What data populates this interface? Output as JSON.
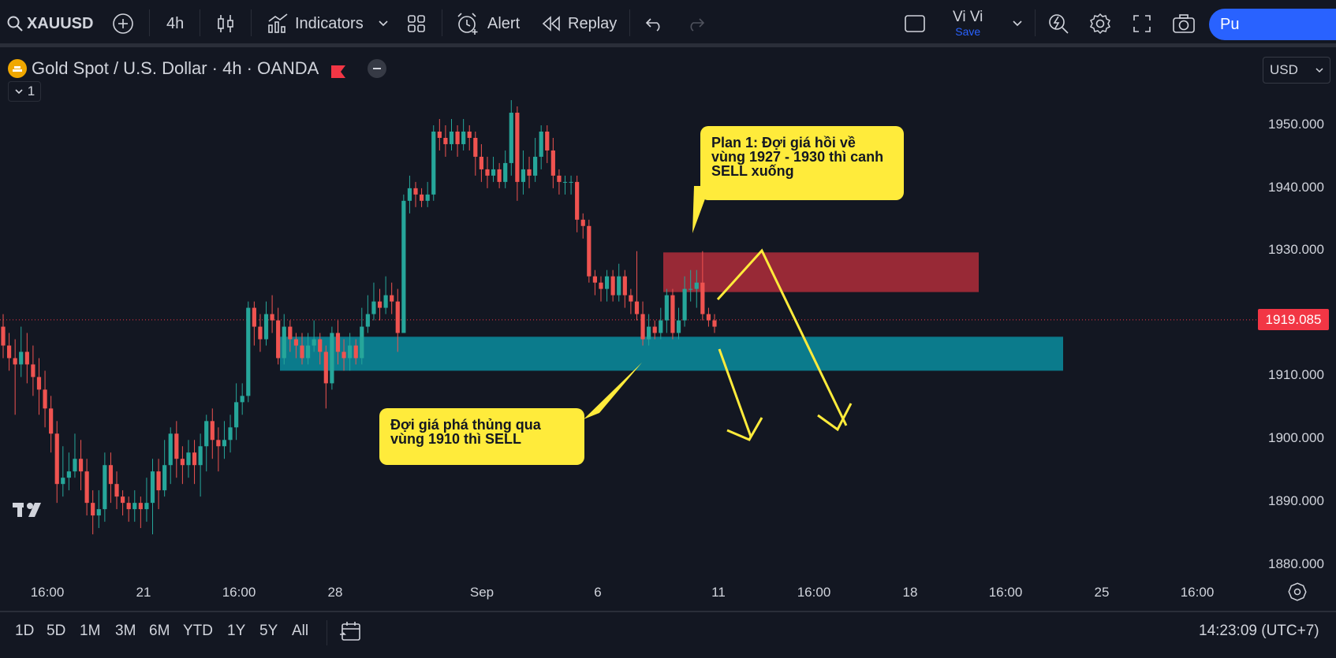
{
  "toolbar": {
    "symbol": "XAUUSD",
    "interval": "4h",
    "indicators_label": "Indicators",
    "alert_label": "Alert",
    "replay_label": "Replay",
    "layout_name": "Vi Vi",
    "save_label": "Save",
    "publish_label": "Pu"
  },
  "legend": {
    "title": "Gold Spot / U.S. Dollar · 4h · OANDA",
    "pane_count": "1"
  },
  "currency": "USD",
  "price_axis": {
    "ticks": [
      "1950.000",
      "1940.000",
      "1930.000",
      "1920.000",
      "1910.000",
      "1900.000",
      "1890.000",
      "1880.000"
    ],
    "current_price": "1919.085"
  },
  "time_axis": {
    "ticks": [
      "16:00",
      "21",
      "16:00",
      "28",
      "Sep",
      "6",
      "11",
      "16:00",
      "18",
      "16:00",
      "25",
      "16:00"
    ]
  },
  "range_buttons": [
    "1D",
    "5D",
    "1M",
    "3M",
    "6M",
    "YTD",
    "1Y",
    "5Y",
    "All"
  ],
  "clock": "14:23:09 (UTC+7)",
  "annotations": {
    "plan1": "Plan 1: Đợi giá hồi về vùng 1927 - 1930 thì canh SELL xuống",
    "plan2": "Đợi giá phá thủng qua vùng 1910 thì SELL"
  },
  "zones": {
    "sell_zone": [
      1923.5,
      1929.8
    ],
    "break_zone": [
      1911.0,
      1916.4
    ]
  },
  "colors": {
    "background": "#131722",
    "up": "#26a69a",
    "down": "#ef5350",
    "sell_zone": "#982936",
    "break_zone": "#0b7b8c",
    "callout": "#ffeb3b",
    "price_label": "#f23645",
    "accent": "#2962ff"
  },
  "chart_data": {
    "type": "candlestick",
    "ylim": [
      1876.5,
      1954.5
    ],
    "current_price": 1919.085,
    "candles": [
      [
        1918,
        1915,
        1920,
        1913
      ],
      [
        1915,
        1913,
        1917,
        1911
      ],
      [
        1913,
        1912,
        1916,
        1904
      ],
      [
        1912,
        1914,
        1918,
        1910
      ],
      [
        1914,
        1912,
        1917,
        1909
      ],
      [
        1912,
        1910,
        1915,
        1907
      ],
      [
        1910,
        1908,
        1913,
        1904
      ],
      [
        1908,
        1905,
        1911,
        1902
      ],
      [
        1905,
        1901,
        1907,
        1898
      ],
      [
        1901,
        1893,
        1903,
        1890
      ],
      [
        1893,
        1894,
        1899,
        1891
      ],
      [
        1894,
        1895,
        1898,
        1892
      ],
      [
        1895,
        1897,
        1901,
        1894
      ],
      [
        1897,
        1895,
        1900,
        1892
      ],
      [
        1895,
        1890,
        1897,
        1888
      ],
      [
        1890,
        1888,
        1892,
        1885
      ],
      [
        1888,
        1889,
        1892,
        1886
      ],
      [
        1889,
        1896,
        1898,
        1887
      ],
      [
        1896,
        1893,
        1898,
        1890
      ],
      [
        1893,
        1891,
        1895,
        1889
      ],
      [
        1891,
        1890,
        1892,
        1888
      ],
      [
        1890,
        1889,
        1891,
        1887
      ],
      [
        1889,
        1890,
        1892,
        1887
      ],
      [
        1890,
        1889,
        1891,
        1886
      ],
      [
        1889,
        1890,
        1894,
        1887
      ],
      [
        1890,
        1895,
        1897,
        1885
      ],
      [
        1895,
        1892,
        1897,
        1889
      ],
      [
        1892,
        1896,
        1900,
        1891
      ],
      [
        1896,
        1901,
        1902,
        1893
      ],
      [
        1901,
        1897,
        1903,
        1894
      ],
      [
        1897,
        1896,
        1899,
        1893
      ],
      [
        1896,
        1898,
        1900,
        1894
      ],
      [
        1898,
        1896,
        1900,
        1893
      ],
      [
        1896,
        1899,
        1901,
        1891
      ],
      [
        1899,
        1903,
        1904,
        1895
      ],
      [
        1903,
        1900,
        1905,
        1897
      ],
      [
        1900,
        1899,
        1902,
        1895
      ],
      [
        1899,
        1900,
        1903,
        1897
      ],
      [
        1900,
        1902,
        1904,
        1898
      ],
      [
        1902,
        1906,
        1909,
        1900
      ],
      [
        1906,
        1907,
        1909,
        1904
      ],
      [
        1907,
        1921,
        1922,
        1906
      ],
      [
        1921,
        1918,
        1922,
        1915
      ],
      [
        1918,
        1916,
        1920,
        1914
      ],
      [
        1916,
        1920,
        1922,
        1915
      ],
      [
        1920,
        1919,
        1923,
        1917
      ],
      [
        1919,
        1913,
        1921,
        1912
      ],
      [
        1913,
        1918,
        1920,
        1912
      ],
      [
        1918,
        1916,
        1919,
        1914
      ],
      [
        1916,
        1915,
        1917,
        1913
      ],
      [
        1915,
        1913,
        1917,
        1912
      ],
      [
        1913,
        1915,
        1917,
        1912
      ],
      [
        1915,
        1916,
        1919,
        1914
      ],
      [
        1916,
        1914,
        1917,
        1912
      ],
      [
        1914,
        1909,
        1915,
        1905
      ],
      [
        1909,
        1917,
        1918,
        1908
      ],
      [
        1917,
        1914,
        1919,
        1912
      ],
      [
        1914,
        1913,
        1916,
        1911
      ],
      [
        1913,
        1915,
        1917,
        1911
      ],
      [
        1915,
        1913,
        1916,
        1912
      ],
      [
        1913,
        1918,
        1921,
        1912
      ],
      [
        1918,
        1920,
        1923,
        1917
      ],
      [
        1920,
        1922,
        1925,
        1919
      ],
      [
        1922,
        1921,
        1924,
        1919
      ],
      [
        1921,
        1923,
        1926,
        1920
      ],
      [
        1923,
        1922,
        1925,
        1920
      ],
      [
        1922,
        1917,
        1924,
        1914
      ],
      [
        1917,
        1938,
        1939,
        1917
      ],
      [
        1938,
        1940,
        1942,
        1936
      ],
      [
        1940,
        1939,
        1941,
        1937
      ],
      [
        1939,
        1938,
        1940,
        1937
      ],
      [
        1938,
        1939,
        1941,
        1937
      ],
      [
        1939,
        1949,
        1950,
        1938
      ],
      [
        1949,
        1948,
        1951,
        1946
      ],
      [
        1948,
        1947,
        1950,
        1945
      ],
      [
        1947,
        1949,
        1951,
        1946
      ],
      [
        1949,
        1947,
        1950,
        1945
      ],
      [
        1947,
        1949,
        1951,
        1946
      ],
      [
        1949,
        1948,
        1950,
        1946
      ],
      [
        1948,
        1945,
        1949,
        1942
      ],
      [
        1945,
        1943,
        1947,
        1941
      ],
      [
        1943,
        1942,
        1945,
        1940
      ],
      [
        1942,
        1943,
        1945,
        1941
      ],
      [
        1943,
        1941,
        1944,
        1940
      ],
      [
        1941,
        1944,
        1946,
        1940
      ],
      [
        1944,
        1952,
        1954,
        1942
      ],
      [
        1952,
        1941,
        1953,
        1938
      ],
      [
        1941,
        1943,
        1946,
        1939
      ],
      [
        1943,
        1942,
        1945,
        1940
      ],
      [
        1942,
        1945,
        1948,
        1941
      ],
      [
        1945,
        1949,
        1950,
        1943
      ],
      [
        1949,
        1946,
        1950,
        1944
      ],
      [
        1946,
        1942,
        1948,
        1940
      ],
      [
        1942,
        1941,
        1943,
        1939
      ],
      [
        1941,
        1941,
        1942,
        1939
      ],
      [
        1941,
        1941,
        1942,
        1939
      ],
      [
        1941,
        1935,
        1942,
        1933
      ],
      [
        1935,
        1934,
        1936,
        1932
      ],
      [
        1934,
        1926,
        1935,
        1925
      ],
      [
        1926,
        1925,
        1927,
        1923
      ],
      [
        1925,
        1924,
        1926,
        1922
      ],
      [
        1924,
        1926,
        1927,
        1922
      ],
      [
        1926,
        1923,
        1927,
        1922
      ],
      [
        1923,
        1926,
        1928,
        1922
      ],
      [
        1926,
        1923,
        1927,
        1921
      ],
      [
        1923,
        1922,
        1924,
        1920
      ],
      [
        1922,
        1920,
        1930,
        1919
      ],
      [
        1920,
        1916,
        1922,
        1915
      ],
      [
        1916,
        1918,
        1920,
        1915
      ],
      [
        1918,
        1917,
        1919,
        1916
      ],
      [
        1917,
        1919,
        1921,
        1916
      ],
      [
        1919,
        1923,
        1924,
        1917
      ],
      [
        1923,
        1917,
        1924,
        1916
      ],
      [
        1917,
        1919,
        1921,
        1916
      ],
      [
        1919,
        1924,
        1926,
        1918
      ],
      [
        1924,
        1924,
        1927,
        1922
      ],
      [
        1924,
        1925,
        1927,
        1921
      ],
      [
        1925,
        1920,
        1930,
        1919
      ],
      [
        1920,
        1919,
        1921,
        1918
      ],
      [
        1919,
        1918,
        1920,
        1917
      ]
    ]
  }
}
